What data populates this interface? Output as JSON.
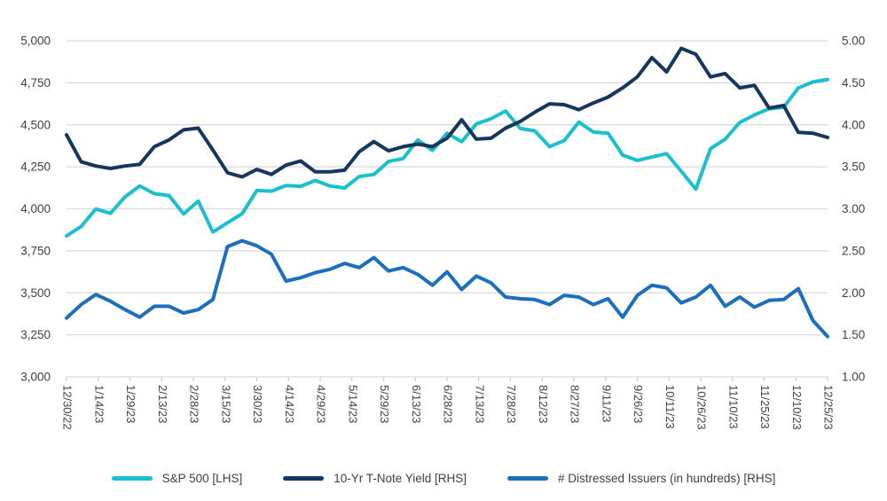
{
  "colors": {
    "background": "#FFFFFF",
    "grid": "#D9D9D9",
    "tick_mark": "#C9CDD2",
    "axis_text": "#404040",
    "sp500": "#1BBFCE",
    "tnote": "#16365D",
    "distressed": "#1B6FBC"
  },
  "chart_data": {
    "type": "line",
    "title": "",
    "grid": "horizontal-only",
    "legend_position": "bottom",
    "x_tick_labels": [
      "12/30/22",
      "1/14/23",
      "1/29/23",
      "2/13/23",
      "2/28/23",
      "3/15/23",
      "3/30/23",
      "4/14/23",
      "4/29/23",
      "5/14/23",
      "5/29/23",
      "6/13/23",
      "6/28/23",
      "7/13/23",
      "7/28/23",
      "8/12/23",
      "8/27/23",
      "9/11/23",
      "9/26/23",
      "10/11/23",
      "10/26/23",
      "11/10/23",
      "11/25/23",
      "12/10/23",
      "12/25/23"
    ],
    "x_note": "weekly data points from 12/30/22 to 12/25/23; axis labels every ~15 days",
    "left_axis": {
      "min": 3000,
      "max": 5000,
      "step": 250,
      "tick_labels": [
        "5,000",
        "4,750",
        "4,500",
        "4,250",
        "4,000",
        "3,750",
        "3,500",
        "3,250",
        "3,000"
      ]
    },
    "right_axis": {
      "min": 1.0,
      "max": 5.0,
      "step": 0.5,
      "tick_labels": [
        "5.00",
        "4.50",
        "4.00",
        "3.50",
        "3.00",
        "2.50",
        "2.00",
        "1.50",
        "1.00"
      ]
    },
    "series": [
      {
        "name": "S&P 500 [LHS]",
        "axis": "left",
        "color_key": "sp500",
        "values": [
          3839,
          3895,
          3999,
          3973,
          4071,
          4136,
          4090,
          4079,
          3970,
          4046,
          3862,
          3917,
          3971,
          4109,
          4105,
          4138,
          4134,
          4169,
          4136,
          4124,
          4192,
          4205,
          4282,
          4299,
          4410,
          4348,
          4450,
          4399,
          4505,
          4536,
          4582,
          4478,
          4464,
          4370,
          4406,
          4516,
          4457,
          4450,
          4320,
          4288,
          4308,
          4328,
          4224,
          4117,
          4358,
          4415,
          4514,
          4559,
          4595,
          4604,
          4719,
          4755,
          4770
        ]
      },
      {
        "name": "10-Yr T-Note Yield [RHS]",
        "axis": "right",
        "color_key": "tnote",
        "values": [
          3.88,
          3.56,
          3.51,
          3.48,
          3.51,
          3.53,
          3.74,
          3.82,
          3.94,
          3.96,
          3.7,
          3.43,
          3.38,
          3.47,
          3.41,
          3.52,
          3.57,
          3.44,
          3.44,
          3.46,
          3.68,
          3.8,
          3.69,
          3.74,
          3.77,
          3.74,
          3.84,
          4.06,
          3.83,
          3.84,
          3.96,
          4.04,
          4.15,
          4.25,
          4.24,
          4.18,
          4.26,
          4.33,
          4.44,
          4.57,
          4.8,
          4.63,
          4.91,
          4.84,
          4.57,
          4.61,
          4.44,
          4.47,
          4.2,
          4.23,
          3.91,
          3.9,
          3.85
        ]
      },
      {
        "name": "# Distressed Issuers (in hundreds) [RHS]",
        "axis": "right",
        "color_key": "distressed",
        "values": [
          1.7,
          1.86,
          1.98,
          1.9,
          1.8,
          1.71,
          1.84,
          1.84,
          1.76,
          1.8,
          1.92,
          2.55,
          2.62,
          2.56,
          2.46,
          2.14,
          2.18,
          2.24,
          2.28,
          2.35,
          2.3,
          2.42,
          2.26,
          2.3,
          2.22,
          2.09,
          2.25,
          2.04,
          2.2,
          2.12,
          1.95,
          1.93,
          1.92,
          1.86,
          1.97,
          1.95,
          1.86,
          1.93,
          1.71,
          1.97,
          2.09,
          2.06,
          1.88,
          1.95,
          2.09,
          1.84,
          1.95,
          1.83,
          1.91,
          1.92,
          2.05,
          1.67,
          1.48
        ]
      }
    ]
  }
}
